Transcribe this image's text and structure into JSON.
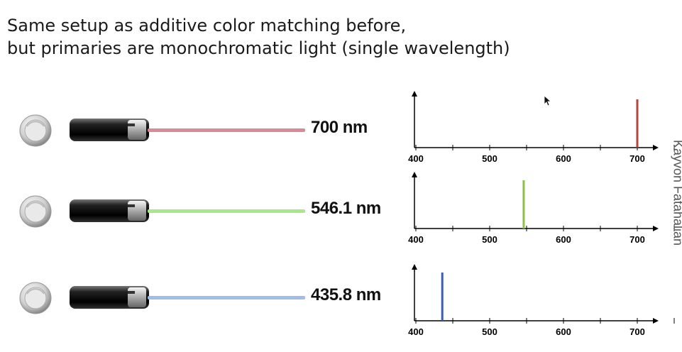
{
  "slide": {
    "title_line1": "Same setup as additive color matching before,",
    "title_line2": "but primaries are monochromatic light (single wavelength)",
    "credit": "Kayvon Fatahalian"
  },
  "primaries": [
    {
      "label": "700 nm",
      "beam_color": "#d98a94",
      "bar_color": "#b5453f"
    },
    {
      "label": "546.1 nm",
      "beam_color": "#a6e88a",
      "bar_color": "#8cc04a"
    },
    {
      "label": "435.8 nm",
      "beam_color": "#9fbde8",
      "bar_color": "#3e5cb0"
    }
  ],
  "chart_data": [
    {
      "type": "bar",
      "x": [
        700
      ],
      "xlim": [
        400,
        700
      ],
      "tick_labels": [
        "400",
        "500",
        "600",
        "700"
      ],
      "bar_color": "#b5453f"
    },
    {
      "type": "bar",
      "x": [
        546.1
      ],
      "xlim": [
        400,
        700
      ],
      "tick_labels": [
        "400",
        "500",
        "600",
        "700"
      ],
      "bar_color": "#8cc04a"
    },
    {
      "type": "bar",
      "x": [
        435.8
      ],
      "xlim": [
        400,
        700
      ],
      "tick_labels": [
        "400",
        "500",
        "600",
        "700"
      ],
      "bar_color": "#3e5cb0"
    }
  ],
  "icons": {
    "knob": "dial-knob-icon",
    "laser": "laser-pointer-icon",
    "cursor": "mouse-cursor-icon"
  }
}
